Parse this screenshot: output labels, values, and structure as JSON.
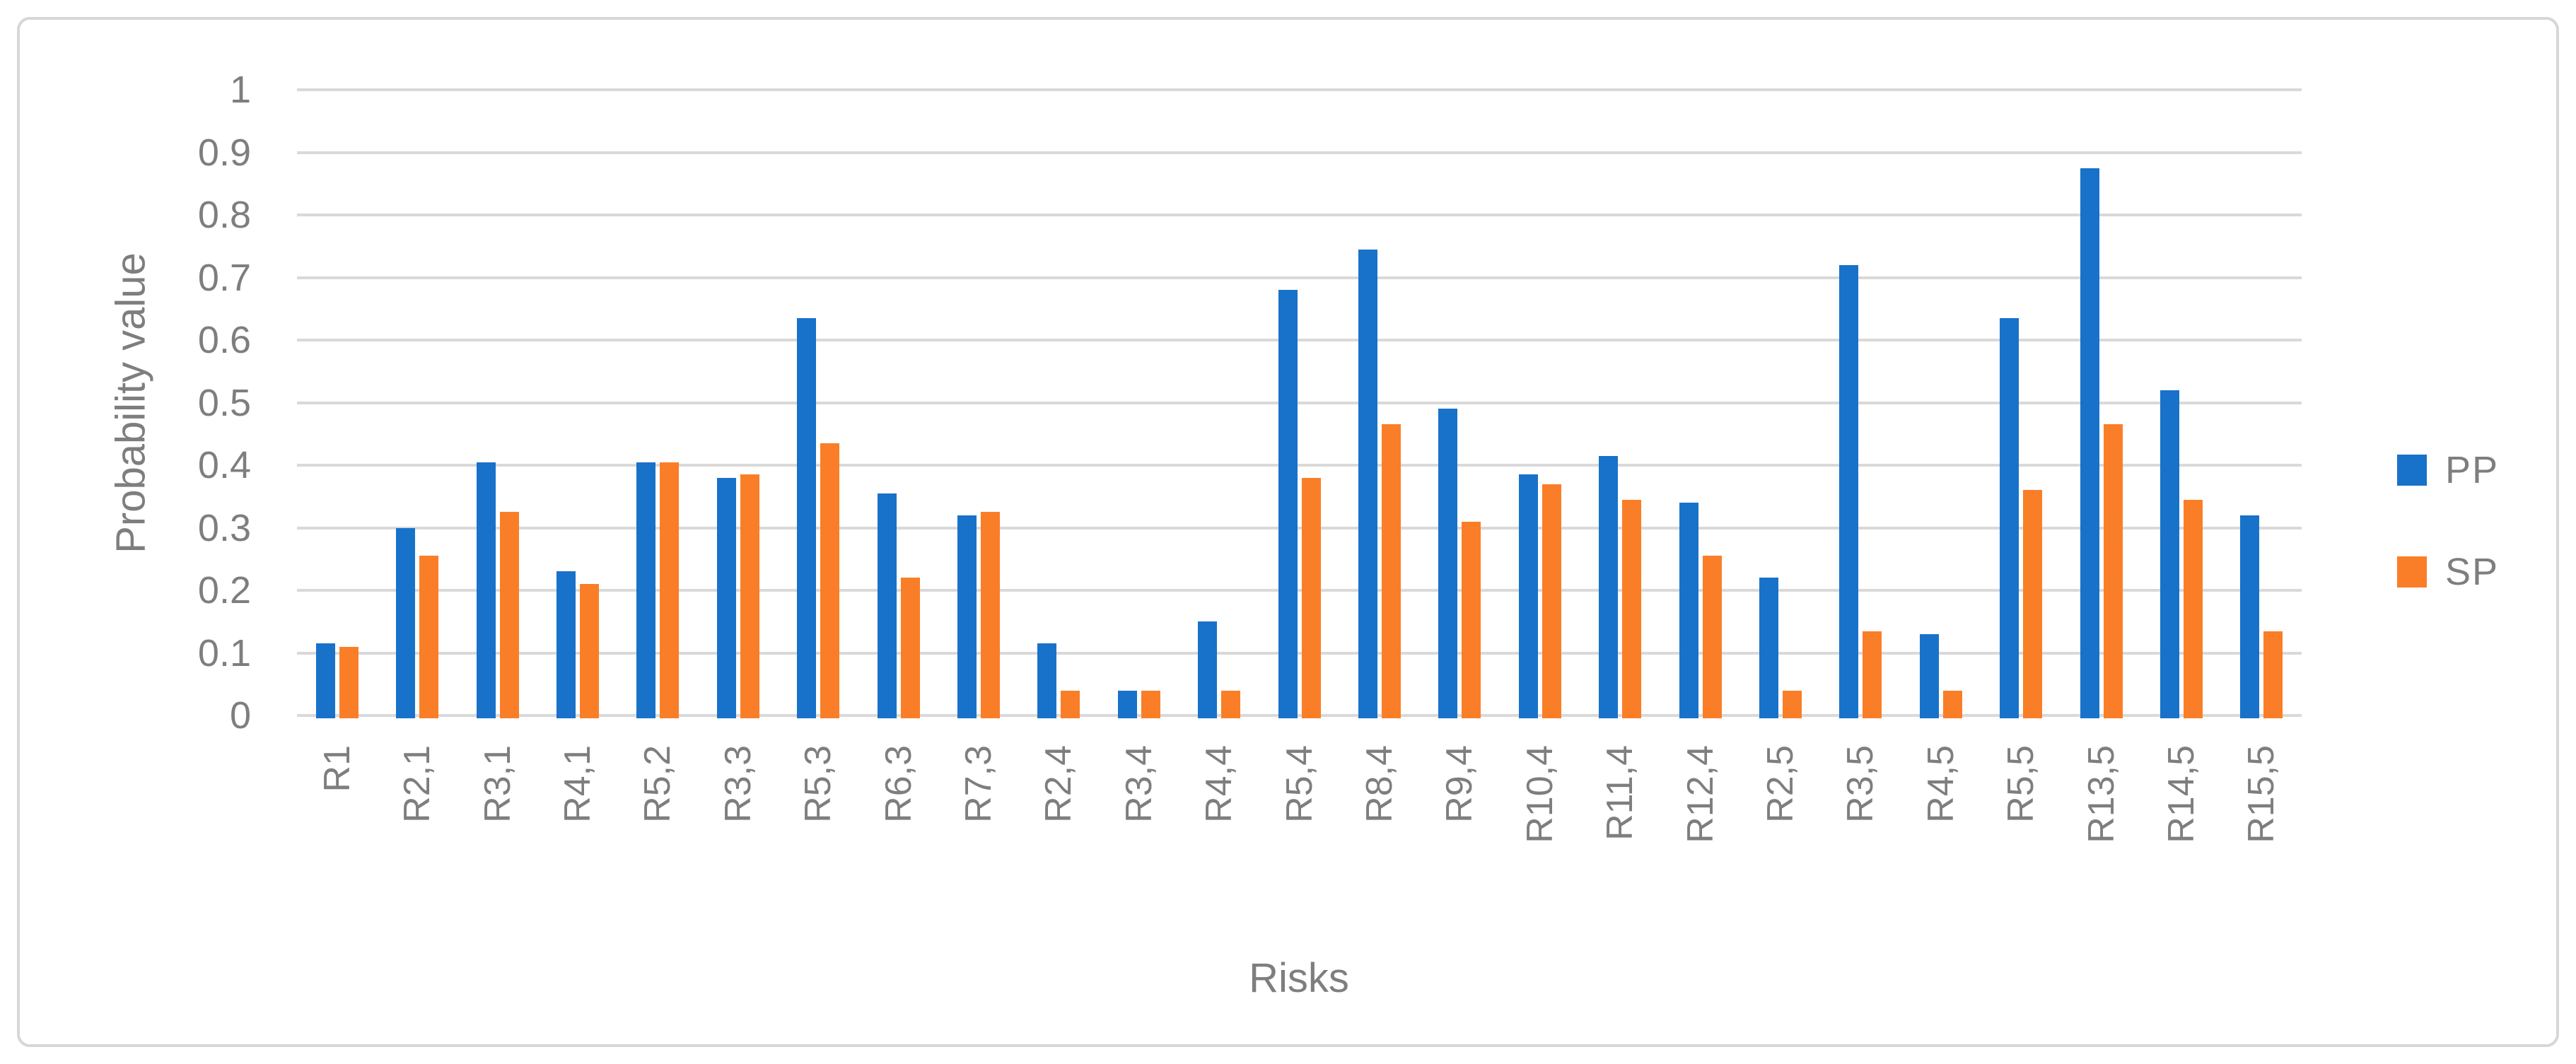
{
  "figure": {
    "background": "#ffffff",
    "border_color": "#d7d7d7",
    "gridline_color": "#d9d9d9",
    "text_color": "#7e7e7e"
  },
  "chart_data": {
    "type": "bar",
    "title": "",
    "categories": [
      "R1",
      "R2,1",
      "R3,1",
      "R4,1",
      "R5,2",
      "R3,3",
      "R5,3",
      "R6,3",
      "R7,3",
      "R2,4",
      "R3,4",
      "R4,4",
      "R5,4",
      "R8,4",
      "R9,4",
      "R10,4",
      "R11,4",
      "R12,4",
      "R2,5",
      "R3,5",
      "R4,5",
      "R5,5",
      "R13,5",
      "R14,5",
      "R15,5"
    ],
    "series": [
      {
        "name": "PP",
        "color": "#1872C9",
        "values": [
          0.115,
          0.3,
          0.405,
          0.23,
          0.405,
          0.38,
          0.635,
          0.355,
          0.32,
          0.115,
          0.04,
          0.15,
          0.68,
          0.745,
          0.49,
          0.385,
          0.415,
          0.34,
          0.22,
          0.72,
          0.13,
          0.635,
          0.875,
          0.52,
          0.32
        ]
      },
      {
        "name": "SP",
        "color": "#FA7E28",
        "values": [
          0.11,
          0.255,
          0.325,
          0.21,
          0.405,
          0.385,
          0.435,
          0.22,
          0.325,
          0.04,
          0.04,
          0.04,
          0.38,
          0.465,
          0.31,
          0.37,
          0.345,
          0.255,
          0.04,
          0.135,
          0.04,
          0.36,
          0.465,
          0.345,
          0.135
        ]
      }
    ],
    "xlabel": "Risks",
    "ylabel": "Probability value",
    "ylim": [
      0,
      1
    ],
    "yticks": [
      "0",
      "0.1",
      "0.2",
      "0.3",
      "0.4",
      "0.5",
      "0.6",
      "0.7",
      "0.8",
      "0.9",
      "1"
    ],
    "ytick_step": 0.1,
    "grid": true,
    "legend_position": "right"
  }
}
